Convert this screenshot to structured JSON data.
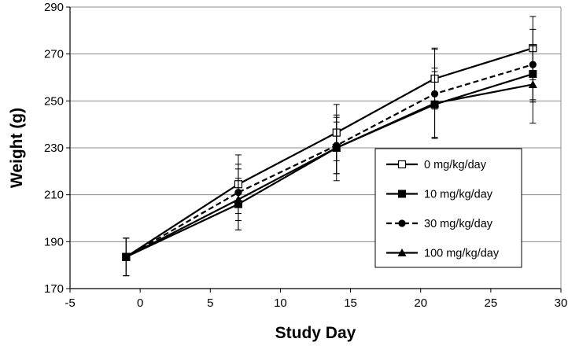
{
  "chart_data": {
    "type": "line",
    "title": "",
    "xlabel": "Study Day",
    "ylabel": "Weight (g)",
    "xlim": [
      -5,
      30
    ],
    "ylim": [
      170,
      290
    ],
    "xticks": [
      -5,
      0,
      5,
      10,
      15,
      20,
      25,
      30
    ],
    "yticks": [
      170,
      190,
      210,
      230,
      250,
      270,
      290
    ],
    "grid": "horizontal",
    "legend_position": "inside-right",
    "x": [
      -1,
      7,
      14,
      21,
      28
    ],
    "series": [
      {
        "name": "0 mg/kg/day",
        "marker": "open-square",
        "line": "solid",
        "values": [
          183.5,
          214.5,
          236.5,
          259.5,
          272.5
        ],
        "error": [
          8,
          12.5,
          12,
          13,
          13.5
        ]
      },
      {
        "name": "10 mg/kg/day",
        "marker": "filled-square",
        "line": "solid",
        "values": [
          183.5,
          206,
          230,
          248.5,
          261.5
        ],
        "error": [
          8,
          11,
          11,
          14,
          12
        ]
      },
      {
        "name": "30 mg/kg/day",
        "marker": "filled-circle",
        "line": "dashed",
        "values": [
          183.5,
          211,
          231,
          253,
          265.5
        ],
        "error": [
          8,
          12,
          12,
          19,
          15
        ]
      },
      {
        "name": "100 mg/kg/day",
        "marker": "filled-triangle",
        "line": "solid",
        "values": [
          183.5,
          208,
          230,
          249,
          257
        ],
        "error": [
          8,
          13,
          14,
          15,
          16.5
        ]
      }
    ]
  }
}
